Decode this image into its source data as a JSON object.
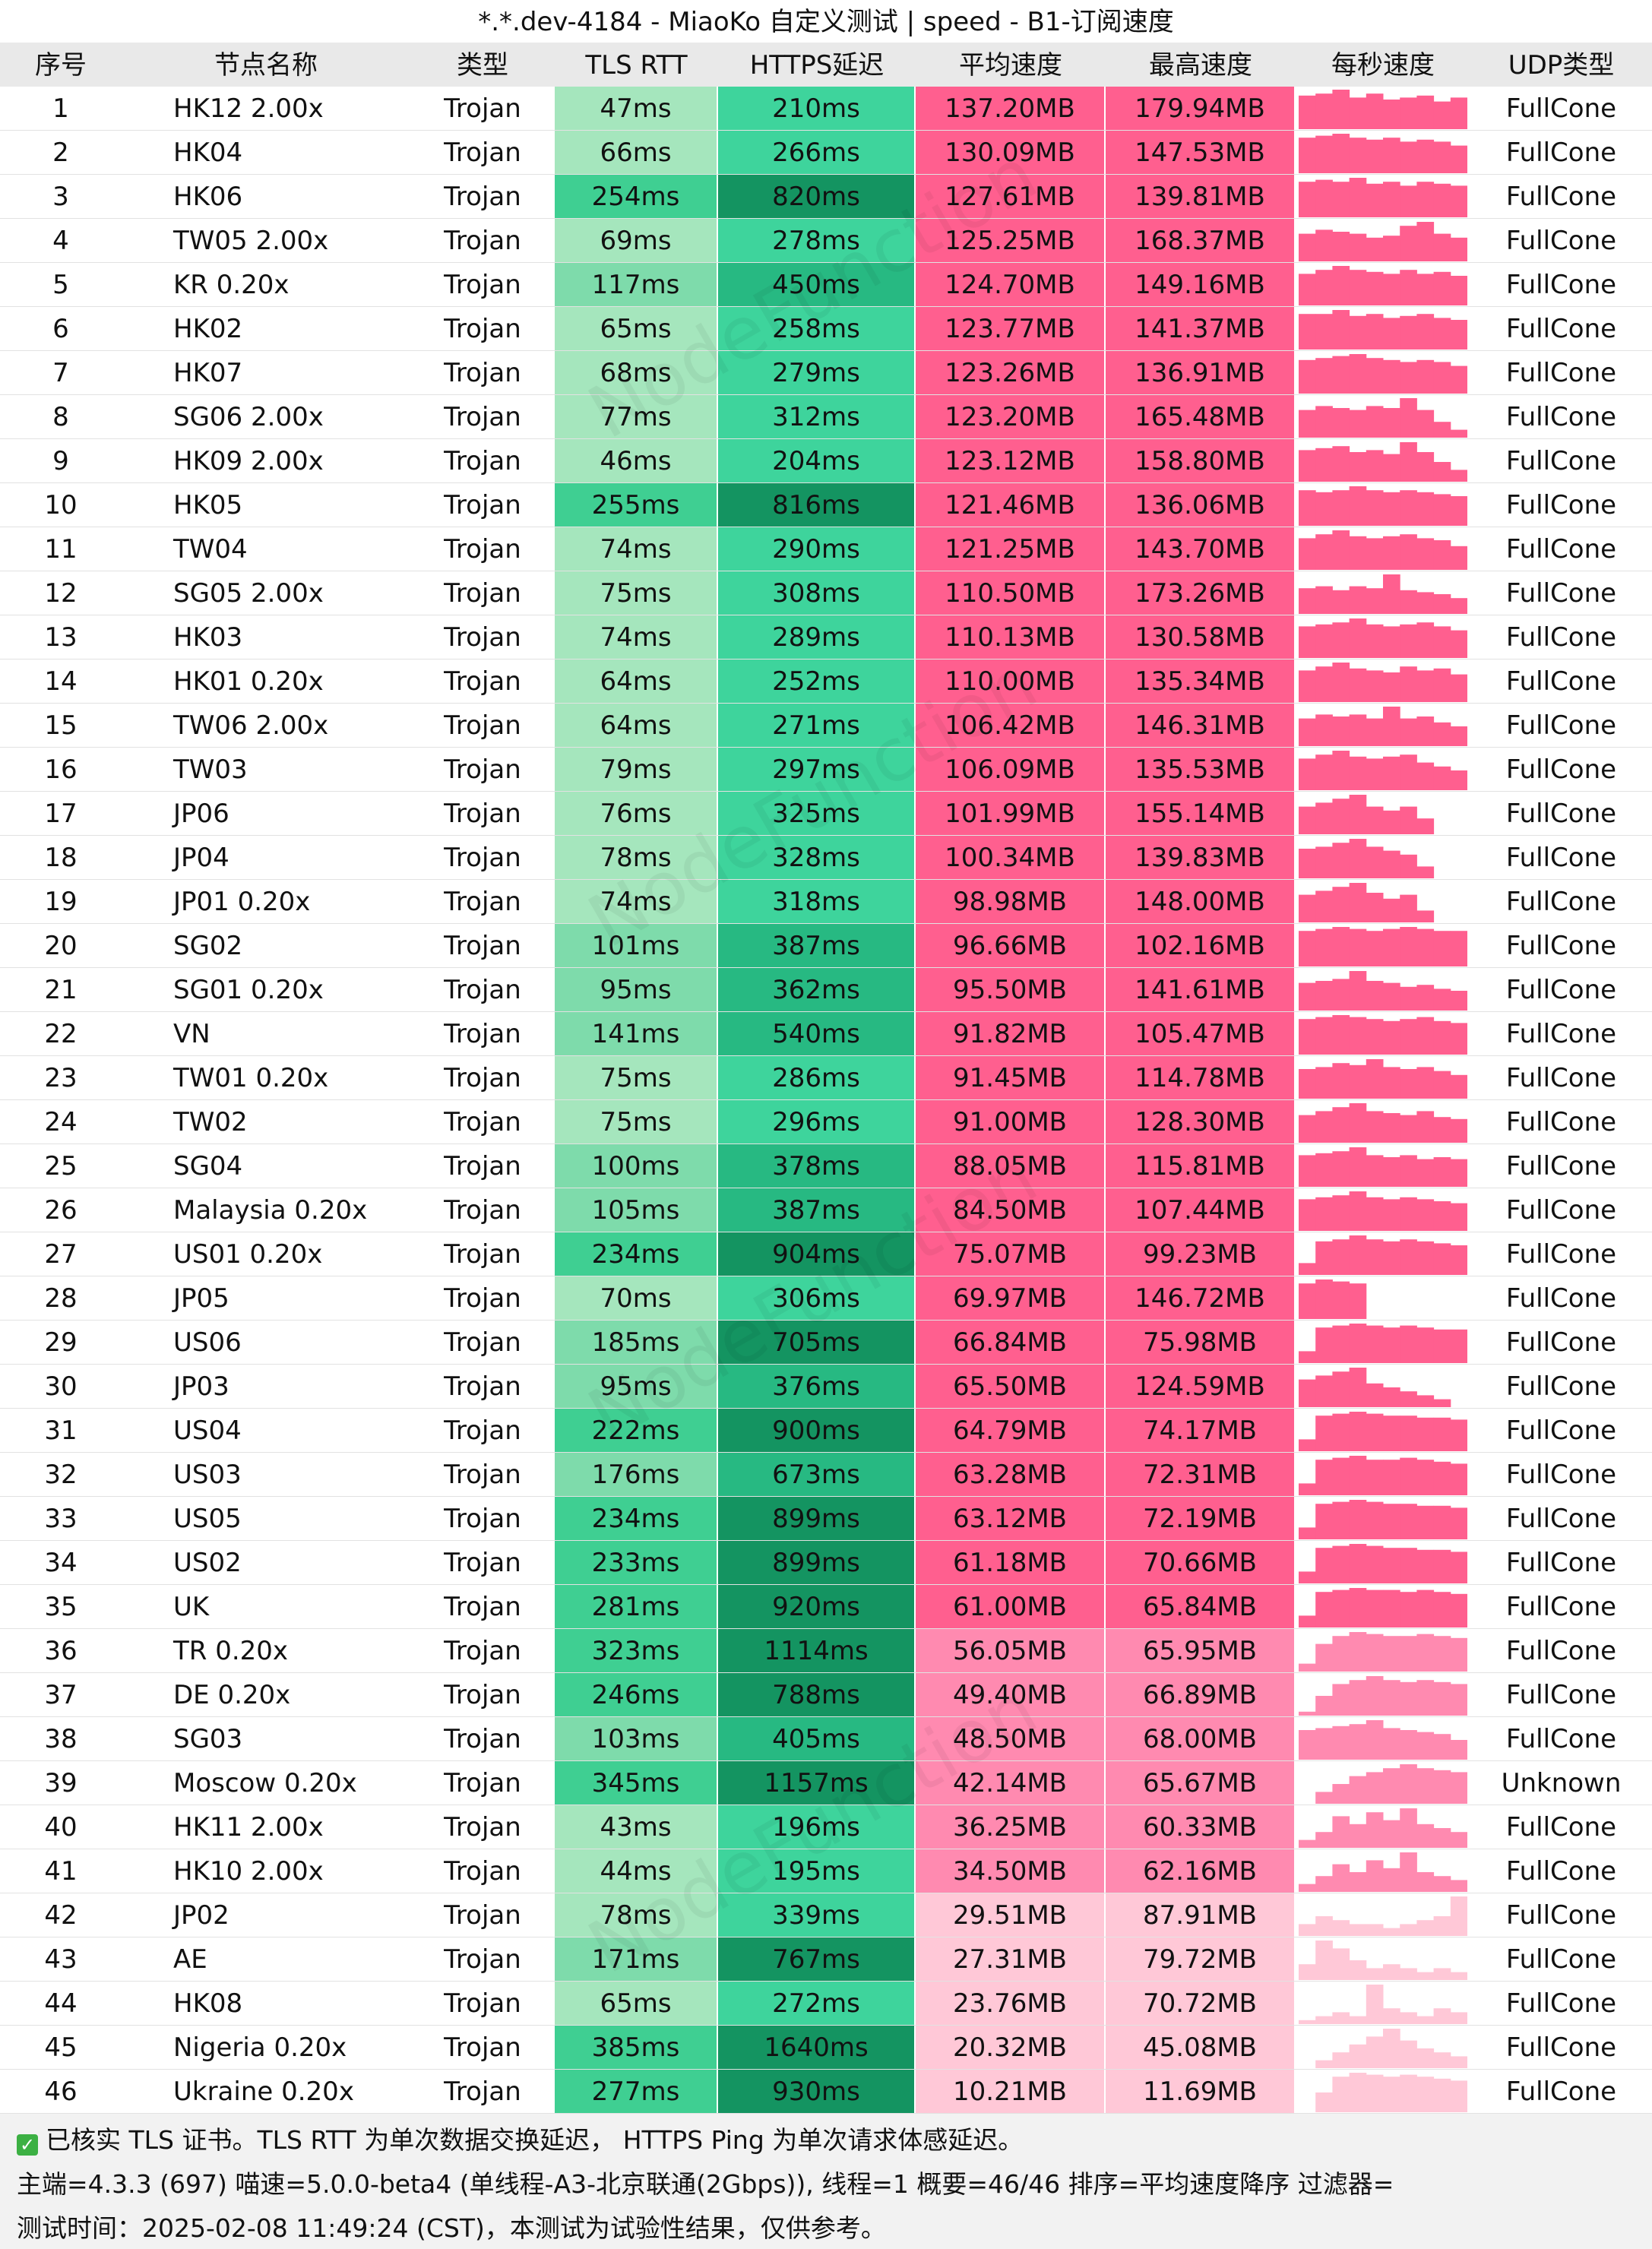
{
  "title": "*.*.dev-4184 - MiaoKo 自定义测试 | speed - B1-订阅速度",
  "columns": [
    "序号",
    "节点名称",
    "类型",
    "TLS RTT",
    "HTTPS延迟",
    "平均速度",
    "最高速度",
    "每秒速度",
    "UDP类型"
  ],
  "watermark": "NodeFunction",
  "colors": {
    "tls_light": "#a5e6bd",
    "tls_mid": "#7edbab",
    "tls_dark": "#3fcf92",
    "https_light": "#3ed49c",
    "https_mid": "#27b982",
    "https_dark": "#149461",
    "speed_hi": "#ff5f8f",
    "speed_mid": "#ff8ab0",
    "speed_lo": "#ffc8d7",
    "header_bg": "#e9e9e9",
    "footer_bg": "#f2f2f2"
  },
  "rows": [
    {
      "idx": "1",
      "flag": "hk",
      "name": "HK12 2.00x",
      "type": "Trojan",
      "tls": "47ms",
      "https": "210ms",
      "avg": "137.20MB",
      "max": "179.94MB",
      "udp": "FullCone",
      "spark": [
        0.85,
        0.9,
        1.0,
        0.8,
        0.9,
        0.75,
        0.8,
        0.85,
        0.7,
        0.8
      ]
    },
    {
      "idx": "2",
      "flag": "hk",
      "name": "HK04",
      "type": "Trojan",
      "tls": "66ms",
      "https": "266ms",
      "avg": "130.09MB",
      "max": "147.53MB",
      "udp": "FullCone",
      "spark": [
        0.9,
        0.95,
        1.0,
        0.9,
        0.85,
        0.9,
        0.8,
        0.85,
        0.8,
        0.7
      ]
    },
    {
      "idx": "3",
      "flag": "hk",
      "name": "HK06",
      "type": "Trojan",
      "tls": "254ms",
      "https": "820ms",
      "avg": "127.61MB",
      "max": "139.81MB",
      "udp": "FullCone",
      "spark": [
        0.9,
        0.95,
        0.9,
        1.0,
        0.85,
        0.9,
        0.8,
        0.9,
        0.85,
        0.8
      ]
    },
    {
      "idx": "4",
      "flag": "cn",
      "name": "TW05 2.00x",
      "type": "Trojan",
      "tls": "69ms",
      "https": "278ms",
      "avg": "125.25MB",
      "max": "168.37MB",
      "udp": "FullCone",
      "spark": [
        0.7,
        0.8,
        0.75,
        0.7,
        0.6,
        0.65,
        0.9,
        1.0,
        0.7,
        0.6
      ]
    },
    {
      "idx": "5",
      "flag": "kr",
      "name": "KR 0.20x",
      "type": "Trojan",
      "tls": "117ms",
      "https": "450ms",
      "avg": "124.70MB",
      "max": "149.16MB",
      "udp": "FullCone",
      "spark": [
        0.8,
        0.9,
        1.0,
        0.9,
        0.85,
        0.8,
        0.9,
        0.8,
        0.85,
        0.75
      ]
    },
    {
      "idx": "6",
      "flag": "hk",
      "name": "HK02",
      "type": "Trojan",
      "tls": "65ms",
      "https": "258ms",
      "avg": "123.77MB",
      "max": "141.37MB",
      "udp": "FullCone",
      "spark": [
        0.9,
        0.9,
        1.0,
        0.85,
        0.9,
        0.8,
        0.85,
        0.9,
        0.8,
        0.75
      ]
    },
    {
      "idx": "7",
      "flag": "hk",
      "name": "HK07",
      "type": "Trojan",
      "tls": "68ms",
      "https": "279ms",
      "avg": "123.26MB",
      "max": "136.91MB",
      "udp": "FullCone",
      "spark": [
        0.85,
        0.9,
        0.95,
        1.0,
        0.9,
        0.85,
        0.8,
        0.85,
        0.8,
        0.7
      ]
    },
    {
      "idx": "8",
      "flag": "sg",
      "name": "SG06 2.00x",
      "type": "Trojan",
      "tls": "77ms",
      "https": "312ms",
      "avg": "123.20MB",
      "max": "165.48MB",
      "udp": "FullCone",
      "spark": [
        0.7,
        0.8,
        0.75,
        0.7,
        0.8,
        0.75,
        1.0,
        0.7,
        0.4,
        0.2
      ]
    },
    {
      "idx": "9",
      "flag": "hk",
      "name": "HK09 2.00x",
      "type": "Trojan",
      "tls": "46ms",
      "https": "204ms",
      "avg": "123.12MB",
      "max": "158.80MB",
      "udp": "FullCone",
      "spark": [
        0.8,
        0.85,
        0.9,
        0.75,
        0.8,
        0.7,
        1.0,
        0.75,
        0.5,
        0.3
      ]
    },
    {
      "idx": "10",
      "flag": "hk",
      "name": "HK05",
      "type": "Trojan",
      "tls": "255ms",
      "https": "816ms",
      "avg": "121.46MB",
      "max": "136.06MB",
      "udp": "FullCone",
      "spark": [
        0.9,
        0.85,
        0.9,
        1.0,
        0.9,
        0.85,
        0.9,
        0.85,
        0.8,
        0.75
      ]
    },
    {
      "idx": "11",
      "flag": "cn",
      "name": "TW04",
      "type": "Trojan",
      "tls": "74ms",
      "https": "290ms",
      "avg": "121.25MB",
      "max": "143.70MB",
      "udp": "FullCone",
      "spark": [
        0.8,
        0.9,
        1.0,
        0.85,
        0.8,
        0.85,
        0.9,
        0.8,
        0.75,
        0.6
      ]
    },
    {
      "idx": "12",
      "flag": "sg",
      "name": "SG05 2.00x",
      "type": "Trojan",
      "tls": "75ms",
      "https": "308ms",
      "avg": "110.50MB",
      "max": "173.26MB",
      "udp": "FullCone",
      "spark": [
        0.65,
        0.7,
        0.6,
        0.7,
        0.65,
        1.0,
        0.6,
        0.55,
        0.5,
        0.4
      ]
    },
    {
      "idx": "13",
      "flag": "hk",
      "name": "HK03",
      "type": "Trojan",
      "tls": "74ms",
      "https": "289ms",
      "avg": "110.13MB",
      "max": "130.58MB",
      "udp": "FullCone",
      "spark": [
        0.8,
        0.85,
        0.9,
        1.0,
        0.85,
        0.8,
        0.85,
        0.9,
        0.8,
        0.7
      ]
    },
    {
      "idx": "14",
      "flag": "hk",
      "name": "HK01 0.20x",
      "type": "Trojan",
      "tls": "64ms",
      "https": "252ms",
      "avg": "110.00MB",
      "max": "135.34MB",
      "udp": "FullCone",
      "spark": [
        0.8,
        0.9,
        1.0,
        0.85,
        0.8,
        0.75,
        0.9,
        0.8,
        0.85,
        0.7
      ]
    },
    {
      "idx": "15",
      "flag": "cn",
      "name": "TW06 2.00x",
      "type": "Trojan",
      "tls": "64ms",
      "https": "271ms",
      "avg": "106.42MB",
      "max": "146.31MB",
      "udp": "FullCone",
      "spark": [
        0.7,
        0.8,
        0.75,
        0.8,
        0.7,
        1.0,
        0.7,
        0.75,
        0.6,
        0.5
      ]
    },
    {
      "idx": "16",
      "flag": "cn",
      "name": "TW03",
      "type": "Trojan",
      "tls": "79ms",
      "https": "297ms",
      "avg": "106.09MB",
      "max": "135.53MB",
      "udp": "FullCone",
      "spark": [
        0.8,
        0.9,
        1.0,
        0.85,
        0.8,
        0.85,
        0.9,
        0.7,
        0.6,
        0.5
      ]
    },
    {
      "idx": "17",
      "flag": "jp",
      "name": "JP06",
      "type": "Trojan",
      "tls": "76ms",
      "https": "325ms",
      "avg": "101.99MB",
      "max": "155.14MB",
      "udp": "FullCone",
      "spark": [
        0.7,
        0.8,
        0.9,
        1.0,
        0.7,
        0.6,
        0.7,
        0.4,
        0.0,
        0.0
      ]
    },
    {
      "idx": "18",
      "flag": "jp",
      "name": "JP04",
      "type": "Trojan",
      "tls": "78ms",
      "https": "328ms",
      "avg": "100.34MB",
      "max": "139.83MB",
      "udp": "FullCone",
      "spark": [
        0.75,
        0.8,
        0.9,
        1.0,
        0.8,
        0.7,
        0.6,
        0.3,
        0.0,
        0.0
      ]
    },
    {
      "idx": "19",
      "flag": "jp",
      "name": "JP01 0.20x",
      "type": "Trojan",
      "tls": "74ms",
      "https": "318ms",
      "avg": "98.98MB",
      "max": "148.00MB",
      "udp": "FullCone",
      "spark": [
        0.7,
        0.8,
        0.9,
        1.0,
        0.75,
        0.6,
        0.7,
        0.3,
        0.0,
        0.0
      ]
    },
    {
      "idx": "20",
      "flag": "sg",
      "name": "SG02",
      "type": "Trojan",
      "tls": "101ms",
      "https": "387ms",
      "avg": "96.66MB",
      "max": "102.16MB",
      "udp": "FullCone",
      "spark": [
        0.9,
        0.95,
        1.0,
        0.95,
        0.9,
        0.95,
        1.0,
        0.95,
        0.9,
        0.9
      ]
    },
    {
      "idx": "21",
      "flag": "sg",
      "name": "SG01 0.20x",
      "type": "Trojan",
      "tls": "95ms",
      "https": "362ms",
      "avg": "95.50MB",
      "max": "141.61MB",
      "udp": "FullCone",
      "spark": [
        0.7,
        0.75,
        0.8,
        1.0,
        0.75,
        0.7,
        0.6,
        0.65,
        0.55,
        0.5
      ]
    },
    {
      "idx": "22",
      "flag": "vn",
      "name": "VN",
      "type": "Trojan",
      "tls": "141ms",
      "https": "540ms",
      "avg": "91.82MB",
      "max": "105.47MB",
      "udp": "FullCone",
      "spark": [
        0.9,
        0.95,
        1.0,
        0.95,
        0.9,
        0.85,
        0.9,
        0.95,
        0.85,
        0.8
      ]
    },
    {
      "idx": "23",
      "flag": "cn",
      "name": "TW01 0.20x",
      "type": "Trojan",
      "tls": "75ms",
      "https": "286ms",
      "avg": "91.45MB",
      "max": "114.78MB",
      "udp": "FullCone",
      "spark": [
        0.75,
        0.8,
        0.9,
        0.85,
        1.0,
        0.8,
        0.75,
        0.8,
        0.7,
        0.6
      ]
    },
    {
      "idx": "24",
      "flag": "cn",
      "name": "TW02",
      "type": "Trojan",
      "tls": "75ms",
      "https": "296ms",
      "avg": "91.00MB",
      "max": "128.30MB",
      "udp": "FullCone",
      "spark": [
        0.7,
        0.8,
        0.9,
        1.0,
        0.8,
        0.75,
        0.7,
        0.8,
        0.65,
        0.6
      ]
    },
    {
      "idx": "25",
      "flag": "sg",
      "name": "SG04",
      "type": "Trojan",
      "tls": "100ms",
      "https": "378ms",
      "avg": "88.05MB",
      "max": "115.81MB",
      "udp": "FullCone",
      "spark": [
        0.8,
        0.85,
        0.9,
        1.0,
        0.8,
        0.75,
        0.8,
        0.7,
        0.75,
        0.7
      ]
    },
    {
      "idx": "26",
      "flag": "my",
      "name": "Malaysia 0.20x",
      "type": "Trojan",
      "tls": "105ms",
      "https": "387ms",
      "avg": "84.50MB",
      "max": "107.44MB",
      "udp": "FullCone",
      "spark": [
        0.8,
        0.85,
        0.9,
        1.0,
        0.85,
        0.8,
        0.85,
        0.8,
        0.75,
        0.7
      ]
    },
    {
      "idx": "27",
      "flag": "us",
      "name": "US01 0.20x",
      "type": "Trojan",
      "tls": "234ms",
      "https": "904ms",
      "avg": "75.07MB",
      "max": "99.23MB",
      "udp": "FullCone",
      "spark": [
        0.3,
        0.85,
        0.9,
        1.0,
        0.9,
        0.85,
        0.9,
        0.85,
        0.8,
        0.75
      ]
    },
    {
      "idx": "28",
      "flag": "jp",
      "name": "JP05",
      "type": "Trojan",
      "tls": "70ms",
      "https": "306ms",
      "avg": "69.97MB",
      "max": "146.72MB",
      "udp": "FullCone",
      "spark": [
        0.9,
        1.0,
        0.95,
        0.9,
        0.0,
        0.0,
        0.0,
        0.0,
        0.0,
        0.0
      ]
    },
    {
      "idx": "29",
      "flag": "us",
      "name": "US06",
      "type": "Trojan",
      "tls": "185ms",
      "https": "705ms",
      "avg": "66.84MB",
      "max": "75.98MB",
      "udp": "FullCone",
      "spark": [
        0.3,
        0.9,
        0.95,
        1.0,
        0.95,
        0.9,
        0.95,
        0.9,
        0.85,
        0.85
      ]
    },
    {
      "idx": "30",
      "flag": "jp",
      "name": "JP03",
      "type": "Trojan",
      "tls": "95ms",
      "https": "376ms",
      "avg": "65.50MB",
      "max": "124.59MB",
      "udp": "FullCone",
      "spark": [
        0.7,
        0.8,
        0.9,
        1.0,
        0.6,
        0.5,
        0.4,
        0.3,
        0.2,
        0.0
      ]
    },
    {
      "idx": "31",
      "flag": "us",
      "name": "US04",
      "type": "Trojan",
      "tls": "222ms",
      "https": "900ms",
      "avg": "64.79MB",
      "max": "74.17MB",
      "udp": "FullCone",
      "spark": [
        0.3,
        0.9,
        0.95,
        1.0,
        0.95,
        0.9,
        0.9,
        0.85,
        0.85,
        0.8
      ]
    },
    {
      "idx": "32",
      "flag": "us",
      "name": "US03",
      "type": "Trojan",
      "tls": "176ms",
      "https": "673ms",
      "avg": "63.28MB",
      "max": "72.31MB",
      "udp": "FullCone",
      "spark": [
        0.3,
        0.9,
        0.95,
        1.0,
        0.9,
        0.9,
        0.95,
        0.9,
        0.85,
        0.8
      ]
    },
    {
      "idx": "33",
      "flag": "us",
      "name": "US05",
      "type": "Trojan",
      "tls": "234ms",
      "https": "899ms",
      "avg": "63.12MB",
      "max": "72.19MB",
      "udp": "FullCone",
      "spark": [
        0.3,
        0.9,
        0.95,
        1.0,
        0.95,
        0.9,
        0.9,
        0.85,
        0.85,
        0.8
      ]
    },
    {
      "idx": "34",
      "flag": "us",
      "name": "US02",
      "type": "Trojan",
      "tls": "233ms",
      "https": "899ms",
      "avg": "61.18MB",
      "max": "70.66MB",
      "udp": "FullCone",
      "spark": [
        0.3,
        0.9,
        0.95,
        1.0,
        0.95,
        0.9,
        0.9,
        0.85,
        0.85,
        0.8
      ]
    },
    {
      "idx": "35",
      "flag": "uk",
      "name": "UK",
      "type": "Trojan",
      "tls": "281ms",
      "https": "920ms",
      "avg": "61.00MB",
      "max": "65.84MB",
      "udp": "FullCone",
      "spark": [
        0.3,
        0.9,
        0.95,
        1.0,
        0.95,
        0.95,
        0.9,
        0.95,
        0.9,
        0.85
      ]
    },
    {
      "idx": "36",
      "flag": "tr",
      "name": "TR 0.20x",
      "type": "Trojan",
      "tls": "323ms",
      "https": "1114ms",
      "avg": "56.05MB",
      "max": "65.95MB",
      "udp": "FullCone",
      "spark": [
        0.2,
        0.7,
        0.9,
        1.0,
        0.95,
        0.9,
        0.9,
        0.95,
        0.9,
        0.85
      ]
    },
    {
      "idx": "37",
      "flag": "de",
      "name": "DE 0.20x",
      "type": "Trojan",
      "tls": "246ms",
      "https": "788ms",
      "avg": "49.40MB",
      "max": "66.89MB",
      "udp": "FullCone",
      "spark": [
        0.1,
        0.5,
        0.8,
        0.9,
        1.0,
        0.9,
        0.85,
        0.9,
        0.85,
        0.8
      ]
    },
    {
      "idx": "38",
      "flag": "sg",
      "name": "SG03",
      "type": "Trojan",
      "tls": "103ms",
      "https": "405ms",
      "avg": "48.50MB",
      "max": "68.00MB",
      "udp": "FullCone",
      "spark": [
        0.75,
        0.8,
        0.85,
        0.9,
        1.0,
        0.8,
        0.75,
        0.7,
        0.65,
        0.5
      ]
    },
    {
      "idx": "39",
      "flag": "ru",
      "name": "Moscow 0.20x",
      "type": "Trojan",
      "tls": "345ms",
      "https": "1157ms",
      "avg": "42.14MB",
      "max": "65.67MB",
      "udp": "Unknown",
      "spark": [
        0.0,
        0.3,
        0.5,
        0.7,
        0.8,
        0.9,
        1.0,
        0.9,
        0.85,
        0.8
      ]
    },
    {
      "idx": "40",
      "flag": "hk",
      "name": "HK11 2.00x",
      "type": "Trojan",
      "tls": "43ms",
      "https": "196ms",
      "avg": "36.25MB",
      "max": "60.33MB",
      "udp": "FullCone",
      "spark": [
        0.2,
        0.4,
        0.8,
        0.6,
        0.9,
        0.7,
        1.0,
        0.6,
        0.5,
        0.4
      ]
    },
    {
      "idx": "41",
      "flag": "hk",
      "name": "HK10 2.00x",
      "type": "Trojan",
      "tls": "44ms",
      "https": "195ms",
      "avg": "34.50MB",
      "max": "62.16MB",
      "udp": "FullCone",
      "spark": [
        0.2,
        0.4,
        0.7,
        0.5,
        0.8,
        0.6,
        1.0,
        0.5,
        0.4,
        0.3
      ]
    },
    {
      "idx": "42",
      "flag": "jp",
      "name": "JP02",
      "type": "Trojan",
      "tls": "78ms",
      "https": "339ms",
      "avg": "29.51MB",
      "max": "87.91MB",
      "udp": "FullCone",
      "spark": [
        0.3,
        0.5,
        0.4,
        0.3,
        0.3,
        0.2,
        0.3,
        0.4,
        0.5,
        1.0
      ]
    },
    {
      "idx": "43",
      "flag": "ae",
      "name": "AE",
      "type": "Trojan",
      "tls": "171ms",
      "https": "767ms",
      "avg": "27.31MB",
      "max": "79.72MB",
      "udp": "FullCone",
      "spark": [
        0.4,
        1.0,
        0.8,
        0.5,
        0.3,
        0.4,
        0.3,
        0.2,
        0.3,
        0.2
      ]
    },
    {
      "idx": "44",
      "flag": "hk",
      "name": "HK08",
      "type": "Trojan",
      "tls": "65ms",
      "https": "272ms",
      "avg": "23.76MB",
      "max": "70.72MB",
      "udp": "FullCone",
      "spark": [
        0.1,
        0.2,
        0.3,
        0.2,
        1.0,
        0.4,
        0.3,
        0.2,
        0.4,
        0.3
      ]
    },
    {
      "idx": "45",
      "flag": "ng",
      "name": "Nigeria 0.20x",
      "type": "Trojan",
      "tls": "385ms",
      "https": "1640ms",
      "avg": "20.32MB",
      "max": "45.08MB",
      "udp": "FullCone",
      "spark": [
        0.0,
        0.2,
        0.4,
        0.6,
        0.8,
        1.0,
        0.7,
        0.5,
        0.4,
        0.3
      ]
    },
    {
      "idx": "46",
      "flag": "ua",
      "name": "Ukraine 0.20x",
      "type": "Trojan",
      "tls": "277ms",
      "https": "930ms",
      "avg": "10.21MB",
      "max": "11.69MB",
      "udp": "FullCone",
      "spark": [
        0.0,
        0.5,
        0.9,
        1.0,
        0.95,
        0.9,
        0.95,
        0.9,
        0.85,
        0.8
      ]
    }
  ],
  "footer": {
    "line1": "已核实 TLS 证书。TLS RTT 为单次数据交换延迟， HTTPS Ping 为单次请求体感延迟。",
    "line2": "主端=4.3.3 (697) 喵速=5.0.0-beta4 (单线程-A3-北京联通(2Gbps)), 线程=1 概要=46/46 排序=平均速度降序 过滤器=",
    "line3": "测试时间：2025-02-08 11:49:24 (CST)，本测试为试验性结果，仅供参考。",
    "check_icon": "✓"
  }
}
